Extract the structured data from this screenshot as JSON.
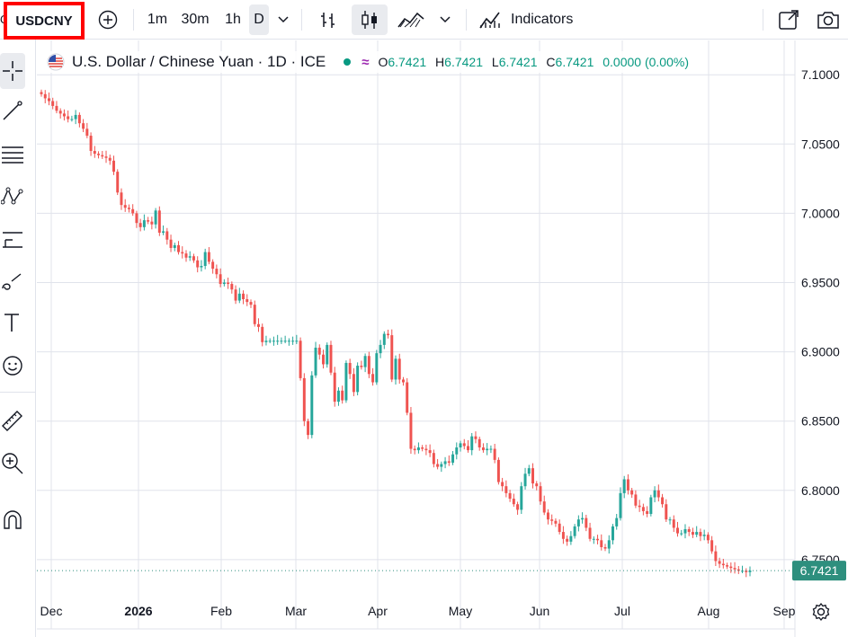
{
  "toolbar": {
    "symbol": "USDCNY",
    "intervals": [
      "1m",
      "30m",
      "1h",
      "D"
    ],
    "selected_interval": "D",
    "indicators_label": "Indicators"
  },
  "legend": {
    "title": "U.S. Dollar / Chinese Yuan · 1D · ICE",
    "o_label": "O",
    "o_value": "6.7421",
    "h_label": "H",
    "h_value": "6.7421",
    "l_label": "L",
    "l_value": "6.7421",
    "c_label": "C",
    "c_value": "6.7421",
    "change": "0.0000 (0.00%)"
  },
  "colors": {
    "up": "#26a69a",
    "down": "#ef5350",
    "price_label_bg": "#2e8f7e",
    "accent_red": "#ff0000"
  },
  "chart_data": {
    "type": "candlestick",
    "price_axis": {
      "ticks": [
        "7.1000",
        "7.0500",
        "7.0000",
        "6.9500",
        "6.9000",
        "6.8500",
        "6.8000",
        "6.7500"
      ],
      "range": [
        6.7,
        7.117
      ],
      "current_price_label": "6.7421"
    },
    "time_axis": {
      "labels": [
        "Dec",
        "2026",
        "Feb",
        "Mar",
        "Apr",
        "May",
        "Jun",
        "Jul",
        "Aug",
        "Sep"
      ]
    },
    "grid": true,
    "close": [
      7.086,
      7.083,
      7.081,
      7.0775,
      7.074,
      7.072,
      7.07,
      7.068,
      7.068,
      7.071,
      7.065,
      7.061,
      7.056,
      7.045,
      7.043,
      7.042,
      7.041,
      7.04,
      7.038,
      7.03,
      7.015,
      7.006,
      7.004,
      7.003,
      7.0,
      6.993,
      6.99,
      6.995,
      6.994,
      6.992,
      7.002,
      6.986,
      6.987,
      6.981,
      6.975,
      6.977,
      6.972,
      6.971,
      6.968,
      6.969,
      6.966,
      6.961,
      6.962,
      6.972,
      6.965,
      6.96,
      6.956,
      6.949,
      6.95,
      6.949,
      6.945,
      6.937,
      6.942,
      6.938,
      6.936,
      6.934,
      6.92,
      6.918,
      6.907,
      6.908,
      6.908,
      6.908,
      6.908,
      6.908,
      6.908,
      6.908,
      6.908,
      6.908,
      6.881,
      6.85,
      6.84,
      6.883,
      6.903,
      6.898,
      6.891,
      6.905,
      6.885,
      6.864,
      6.872,
      6.865,
      6.892,
      6.884,
      6.871,
      6.89,
      6.889,
      6.897,
      6.884,
      6.878,
      6.899,
      6.905,
      6.913,
      6.912,
      6.88,
      6.895,
      6.88,
      6.878,
      6.856,
      6.83,
      6.829,
      6.831,
      6.83,
      6.829,
      6.827,
      6.819,
      6.817,
      6.819,
      6.821,
      6.82,
      6.826,
      6.831,
      6.834,
      6.832,
      6.829,
      6.839,
      6.837,
      6.831,
      6.829,
      6.83,
      6.83,
      6.822,
      6.806,
      6.803,
      6.798,
      6.794,
      6.79,
      6.786,
      6.803,
      6.812,
      6.816,
      6.805,
      6.803,
      6.792,
      6.784,
      6.779,
      6.778,
      6.776,
      6.77,
      6.765,
      6.763,
      6.767,
      6.774,
      6.779,
      6.78,
      6.773,
      6.765,
      6.765,
      6.764,
      6.759,
      6.758,
      6.764,
      6.774,
      6.78,
      6.798,
      6.808,
      6.8,
      6.797,
      6.789,
      6.788,
      6.785,
      6.783,
      6.795,
      6.8,
      6.795,
      6.79,
      6.779,
      6.779,
      6.773,
      6.769,
      6.769,
      6.772,
      6.77,
      6.768,
      6.77,
      6.767,
      6.768,
      6.764,
      6.756,
      6.749,
      6.747,
      6.746,
      6.745,
      6.744,
      6.743,
      6.742,
      6.742,
      6.741,
      6.7421
    ]
  }
}
